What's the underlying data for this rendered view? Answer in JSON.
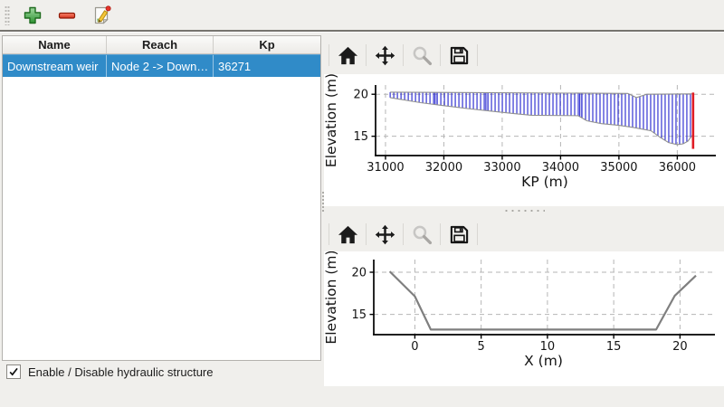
{
  "toolbar": {
    "buttons": [
      {
        "name": "add",
        "icon": "plus-icon"
      },
      {
        "name": "remove",
        "icon": "minus-icon"
      },
      {
        "name": "edit",
        "icon": "edit-icon"
      }
    ]
  },
  "table": {
    "columns": [
      "Name",
      "Reach",
      "Kp"
    ],
    "rows": [
      {
        "name": "Downstream weir",
        "reach": "Node 2 -> Down…",
        "kp": "36271",
        "selected": true
      }
    ],
    "selection_color": "#308bc8"
  },
  "checkbox": {
    "label": "Enable / Disable hydraulic structure",
    "checked": true
  },
  "plot_toolbars": {
    "icons": [
      {
        "name": "home",
        "enabled": true
      },
      {
        "name": "pan",
        "enabled": true
      },
      {
        "name": "zoom",
        "enabled": false
      },
      {
        "name": "save",
        "enabled": true
      }
    ]
  },
  "chart_data": [
    {
      "type": "area",
      "name": "longitudinal-profile",
      "title": "",
      "xlabel": "KP (m)",
      "ylabel": "Elevation (m)",
      "xlim": [
        30830,
        36630
      ],
      "ylim": [
        12.7,
        21.1
      ],
      "xticks": [
        31000,
        32000,
        33000,
        34000,
        35000,
        36000
      ],
      "yticks": [
        15,
        20
      ],
      "grid": true,
      "band": {
        "hatch": "vertical",
        "hatch_color": "#2a2ad0",
        "edge_color": "#8f8f8f",
        "hatch_spacing_m": 62,
        "extra_hatch_x": [
          31850,
          31884,
          32720,
          32754,
          34330,
          34364
        ],
        "top": [
          [
            31080,
            20.25
          ],
          [
            35150,
            20.1
          ],
          [
            35300,
            19.6
          ],
          [
            35480,
            20.0
          ],
          [
            36271,
            20.05
          ]
        ],
        "bottom": [
          [
            31080,
            19.6
          ],
          [
            31600,
            19.0
          ],
          [
            32000,
            18.65
          ],
          [
            32400,
            18.3
          ],
          [
            32800,
            18.0
          ],
          [
            33200,
            17.7
          ],
          [
            33500,
            17.5
          ],
          [
            34300,
            17.45
          ],
          [
            34450,
            16.85
          ],
          [
            34700,
            16.5
          ],
          [
            35000,
            16.3
          ],
          [
            35250,
            16.05
          ],
          [
            35550,
            15.65
          ],
          [
            35700,
            14.9
          ],
          [
            35850,
            14.25
          ],
          [
            36000,
            14.0
          ],
          [
            36100,
            14.1
          ],
          [
            36180,
            14.4
          ],
          [
            36271,
            15.25
          ]
        ]
      },
      "marker_line": {
        "label": "structure-location-kp",
        "x": 36271,
        "y": [
          13.5,
          20.2
        ],
        "color": "#e01b24"
      }
    },
    {
      "type": "line",
      "name": "cross-section",
      "title": "",
      "xlabel": "X (m)",
      "ylabel": "Elevation (m)",
      "xlim": [
        -3.1,
        22.5
      ],
      "ylim": [
        12.6,
        21.5
      ],
      "xticks": [
        0,
        5,
        10,
        15,
        20
      ],
      "yticks": [
        15,
        20
      ],
      "grid": true,
      "line": {
        "color": "#7f7f7f",
        "width": 2.2,
        "points": [
          [
            -1.9,
            20.1
          ],
          [
            0,
            17.15
          ],
          [
            1.2,
            13.2
          ],
          [
            18.2,
            13.2
          ],
          [
            19.6,
            17.2
          ],
          [
            21.2,
            19.6
          ]
        ]
      }
    }
  ]
}
